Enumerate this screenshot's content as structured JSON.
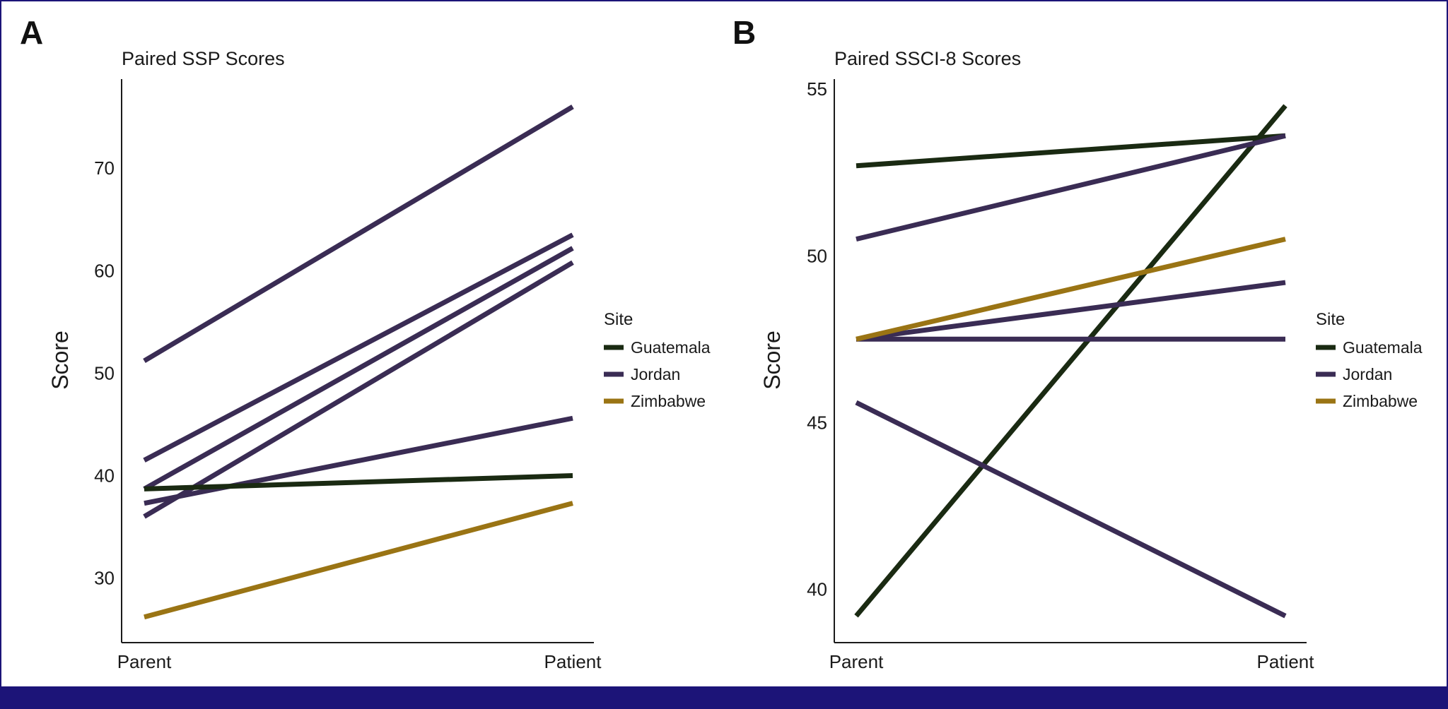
{
  "chart_data": [
    {
      "type": "line",
      "panel": "A",
      "title": "Paired SSP Scores",
      "xlabel": "",
      "ylabel": "Score",
      "categories": [
        "Parent",
        "Patient"
      ],
      "ylim": [
        23.7,
        78.7
      ],
      "yticks": [
        30,
        40,
        50,
        60,
        70
      ],
      "legend": {
        "title": "Site",
        "entries": [
          {
            "name": "Guatemala",
            "color": "#1a2a12"
          },
          {
            "name": "Jordan",
            "color": "#3a2c54"
          },
          {
            "name": "Zimbabwe",
            "color": "#9a7414"
          }
        ]
      },
      "series": [
        {
          "site": "Jordan",
          "values": [
            51.2,
            76.0
          ]
        },
        {
          "site": "Jordan",
          "values": [
            41.5,
            63.5
          ]
        },
        {
          "site": "Jordan",
          "values": [
            38.7,
            62.2
          ]
        },
        {
          "site": "Jordan",
          "values": [
            36.0,
            60.8
          ]
        },
        {
          "site": "Jordan",
          "values": [
            37.3,
            45.6
          ]
        },
        {
          "site": "Guatemala",
          "values": [
            38.7,
            40.0
          ]
        },
        {
          "site": "Zimbabwe",
          "values": [
            26.2,
            37.3
          ]
        }
      ]
    },
    {
      "type": "line",
      "panel": "B",
      "title": "Paired SSCI-8 Scores",
      "xlabel": "",
      "ylabel": "Score",
      "categories": [
        "Parent",
        "Patient"
      ],
      "ylim": [
        38.4,
        55.3
      ],
      "yticks": [
        40,
        45,
        50,
        55
      ],
      "legend": {
        "title": "Site",
        "entries": [
          {
            "name": "Guatemala",
            "color": "#1a2a12"
          },
          {
            "name": "Jordan",
            "color": "#3a2c54"
          },
          {
            "name": "Zimbabwe",
            "color": "#9a7414"
          }
        ]
      },
      "series": [
        {
          "site": "Guatemala",
          "values": [
            52.7,
            53.6
          ]
        },
        {
          "site": "Guatemala",
          "values": [
            39.2,
            54.5
          ]
        },
        {
          "site": "Jordan",
          "values": [
            50.5,
            53.6
          ]
        },
        {
          "site": "Jordan",
          "values": [
            47.5,
            49.2
          ]
        },
        {
          "site": "Jordan",
          "values": [
            47.5,
            47.5
          ]
        },
        {
          "site": "Jordan",
          "values": [
            45.6,
            39.2
          ]
        },
        {
          "site": "Zimbabwe",
          "values": [
            47.5,
            50.5
          ]
        }
      ]
    }
  ]
}
